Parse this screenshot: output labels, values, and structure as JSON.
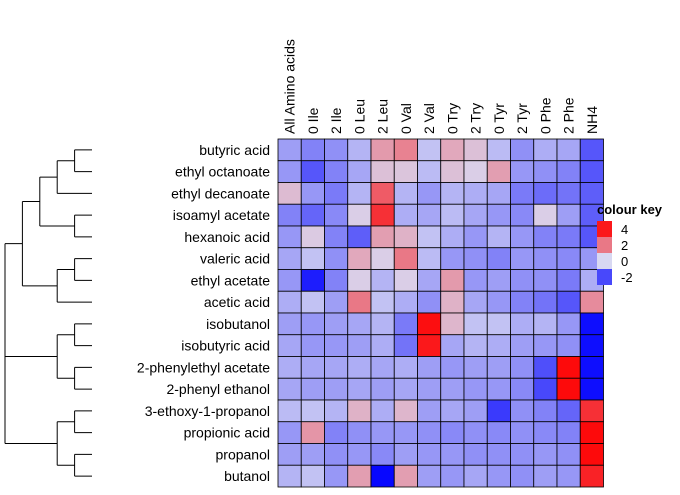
{
  "chart_data": {
    "type": "heatmap",
    "title": "",
    "columns": [
      "All Amino acids",
      "0 Ile",
      "2 Ile",
      "0 Leu",
      "2 Leu",
      "0 Val",
      "2 Val",
      "0 Try",
      "2 Try",
      "0 Tyr",
      "2 Tyr",
      "0 Phe",
      "2 Phe",
      "NH4"
    ],
    "rows": [
      "butyric acid",
      "ethyl octanoate",
      "ethyl decanoate",
      "isoamyl acetate",
      "hexanoic acid",
      "valeric acid",
      "ethyl acetate",
      "acetic acid",
      "isobutanol",
      "isobutyric acid",
      "2-phenylethyl acetate",
      "2-phenyl ethanol",
      "3-ethoxy-1-propanol",
      "propionic acid",
      "propanol",
      "butanol"
    ],
    "values": [
      [
        -0.8,
        -1.2,
        -1.0,
        -0.5,
        1.3,
        1.8,
        -0.3,
        1.0,
        0.5,
        -0.4,
        -1.0,
        -0.6,
        -0.7,
        -1.8
      ],
      [
        -0.9,
        -1.8,
        -1.2,
        -0.7,
        0.5,
        0.4,
        -0.4,
        0.5,
        0.2,
        1.2,
        -0.9,
        -1.0,
        -1.2,
        -1.8
      ],
      [
        0.6,
        -0.9,
        -1.3,
        -0.5,
        2.6,
        -0.5,
        -0.9,
        -0.5,
        -0.6,
        -0.7,
        -1.3,
        -1.5,
        -1.4,
        -1.7
      ],
      [
        -1.2,
        -1.6,
        -1.1,
        0.2,
        3.5,
        -0.6,
        -0.7,
        -0.4,
        -0.7,
        -0.9,
        -1.1,
        0.2,
        -0.8,
        -1.7
      ],
      [
        -0.9,
        0.3,
        -1.2,
        -1.7,
        1.2,
        0.8,
        -0.3,
        -0.6,
        -0.9,
        -0.5,
        -0.9,
        -1.2,
        -1.3,
        -1.8
      ],
      [
        -0.7,
        -0.3,
        -1.0,
        1.0,
        0.2,
        2.0,
        -0.4,
        -0.9,
        -1.0,
        -1.2,
        -0.9,
        -1.0,
        -1.1,
        -0.9
      ],
      [
        -0.9,
        -2.6,
        -1.2,
        0.2,
        -0.5,
        0.2,
        -0.7,
        1.3,
        -0.9,
        -0.8,
        -1.0,
        -1.0,
        -1.3,
        -0.6
      ],
      [
        -0.6,
        -0.3,
        -0.8,
        2.0,
        -0.3,
        -0.6,
        -1.0,
        0.8,
        -0.7,
        -0.9,
        -1.2,
        -1.4,
        -1.8,
        1.6
      ],
      [
        -0.8,
        -0.9,
        -0.8,
        -0.7,
        -0.5,
        -1.3,
        4.2,
        0.7,
        -0.3,
        -0.3,
        -0.6,
        -0.5,
        -0.9,
        -2.8
      ],
      [
        -0.7,
        -0.9,
        -0.9,
        -0.8,
        -0.6,
        -1.4,
        4.0,
        -0.7,
        -0.5,
        -0.6,
        -0.8,
        -0.9,
        -1.0,
        -2.8
      ],
      [
        -0.6,
        -0.7,
        -0.7,
        -0.6,
        -0.7,
        -0.6,
        -0.8,
        -0.9,
        -0.8,
        -0.8,
        -1.0,
        -1.9,
        4.3,
        -2.8
      ],
      [
        -0.7,
        -0.8,
        -0.8,
        -0.7,
        -0.8,
        -0.7,
        -0.8,
        -0.8,
        -0.9,
        -0.9,
        -1.1,
        -2.0,
        4.3,
        -2.8
      ],
      [
        -0.4,
        -0.3,
        -0.5,
        0.8,
        -0.6,
        0.7,
        -0.8,
        -0.7,
        -0.8,
        -2.2,
        -1.0,
        -1.2,
        -1.6,
        3.5
      ],
      [
        -0.9,
        1.4,
        -1.2,
        -1.0,
        -0.9,
        -0.9,
        -1.0,
        -1.1,
        -1.0,
        -1.1,
        -1.0,
        -1.1,
        -1.2,
        4.3
      ],
      [
        -0.8,
        -0.8,
        -1.0,
        -0.9,
        -1.1,
        -0.8,
        -0.9,
        -0.9,
        -1.0,
        -1.0,
        -1.0,
        -0.9,
        -1.0,
        4.3
      ],
      [
        -0.5,
        -0.3,
        -0.9,
        1.2,
        -2.9,
        1.2,
        -0.8,
        -0.9,
        -0.7,
        -0.9,
        -1.0,
        -0.8,
        -0.9,
        3.8
      ]
    ],
    "color_scale": {
      "low": "#0000ff",
      "mid": "#d8d8f2",
      "high": "#ff0000",
      "min": -3,
      "mid_value": 0,
      "max": 4.5
    },
    "legend": {
      "title": "colour key",
      "ticks": [
        {
          "label": "4",
          "value": 4
        },
        {
          "label": "2",
          "value": 2
        },
        {
          "label": "0",
          "value": 0
        },
        {
          "label": "-2",
          "value": -2
        }
      ],
      "placement": "right"
    },
    "dendrogram": {
      "side": "left",
      "tree": [
        [
          [
            [
              [
                "butyric acid",
                "ethyl octanoate"
              ],
              "ethyl decanoate"
            ],
            [
              "isoamyl acetate",
              "hexanoic acid"
            ]
          ],
          [
            [
              "valeric acid",
              "ethyl acetate"
            ],
            "acetic acid"
          ]
        ],
        [
          [
            "isobutanol",
            "isobutyric acid"
          ],
          [
            "2-phenylethyl acetate",
            "2-phenyl ethanol"
          ]
        ],
        [
          [
            "3-ethoxy-1-propanol",
            "propionic acid"
          ],
          [
            "propanol",
            "butanol"
          ]
        ]
      ]
    }
  }
}
